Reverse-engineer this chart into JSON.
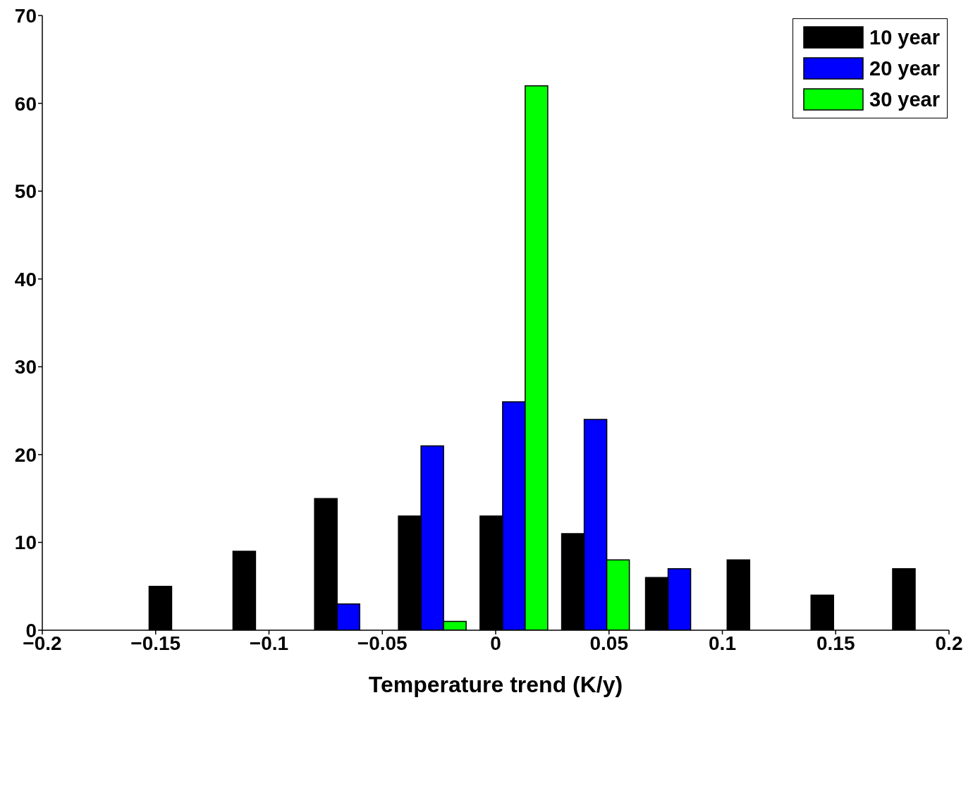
{
  "chart_data": {
    "type": "bar",
    "xlabel": "Temperature trend (K/y)",
    "x": [
      -0.138,
      -0.101,
      -0.065,
      -0.028,
      0.008,
      0.044,
      0.081,
      0.117,
      0.154,
      0.19
    ],
    "series": [
      {
        "name": "10 year",
        "color": "#000000",
        "values": [
          5,
          9,
          15,
          13,
          13,
          11,
          6,
          8,
          4,
          7
        ]
      },
      {
        "name": "20 year",
        "color": "#0000ff",
        "values": [
          0,
          0,
          3,
          21,
          26,
          24,
          7,
          0,
          0,
          0
        ]
      },
      {
        "name": "30 year",
        "color": "#00ff00",
        "values": [
          0,
          0,
          0,
          1,
          62,
          8,
          0,
          0,
          0,
          0
        ]
      }
    ],
    "xlim": [
      -0.2,
      0.2
    ],
    "xticks": [
      -0.2,
      -0.15,
      -0.1,
      -0.05,
      0,
      0.05,
      0.1,
      0.15,
      0.2
    ],
    "ylim": [
      0,
      70
    ],
    "yticks": [
      0,
      10,
      20,
      30,
      40,
      50,
      60,
      70
    ],
    "grid": false,
    "legend": "top right"
  }
}
